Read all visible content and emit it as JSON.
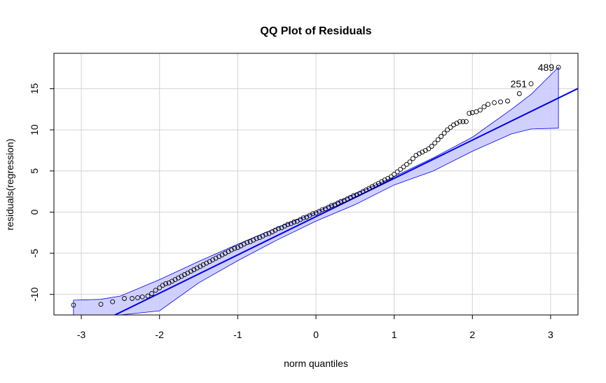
{
  "chart_data": {
    "type": "scatter",
    "title": "QQ Plot of Residuals",
    "xlabel": "norm quantiles",
    "ylabel": "residuals(regression)",
    "xlim": [
      -3.35,
      3.35
    ],
    "ylim": [
      -12.5,
      19.3
    ],
    "xticks": [
      -3,
      -2,
      -1,
      0,
      1,
      2,
      3
    ],
    "yticks": [
      -10,
      -5,
      0,
      5,
      10,
      15
    ],
    "grid": true,
    "colors": {
      "points": "#000000",
      "line": "#0000ee",
      "band_fill": "#c8c8ff",
      "band_stroke": "#0000ee",
      "grid": "#d3d3d3"
    },
    "reference_line": {
      "intercept": -0.55,
      "slope": 4.65
    },
    "envelope": {
      "x": [
        -3.1,
        -2.75,
        -2.5,
        -2.0,
        -1.5,
        -1.0,
        -0.5,
        0.0,
        0.5,
        1.0,
        1.5,
        2.0,
        2.5,
        2.75,
        3.1
      ],
      "upper": [
        -10.7,
        -10.6,
        -10.2,
        -8.2,
        -6.0,
        -3.9,
        -1.9,
        0.0,
        2.2,
        4.3,
        6.6,
        9.1,
        12.5,
        14.3,
        17.6
      ],
      "lower": [
        -12.5,
        -12.5,
        -12.5,
        -12.0,
        -8.6,
        -5.9,
        -3.4,
        -1.1,
        0.9,
        3.3,
        5.0,
        7.4,
        9.5,
        10.1,
        10.2
      ]
    },
    "points": {
      "x": [
        -3.1,
        -2.75,
        -2.6,
        -2.45,
        -2.35,
        -2.28,
        -2.22,
        -2.15,
        -2.1,
        -2.05,
        -2.0,
        -1.96,
        -1.92,
        -1.88,
        -1.84,
        -1.8,
        -1.76,
        -1.72,
        -1.68,
        -1.64,
        -1.6,
        -1.56,
        -1.52,
        -1.48,
        -1.44,
        -1.4,
        -1.36,
        -1.32,
        -1.28,
        -1.24,
        -1.2,
        -1.16,
        -1.12,
        -1.08,
        -1.04,
        -1.0,
        -0.96,
        -0.92,
        -0.88,
        -0.84,
        -0.8,
        -0.76,
        -0.72,
        -0.68,
        -0.64,
        -0.6,
        -0.56,
        -0.52,
        -0.48,
        -0.44,
        -0.4,
        -0.36,
        -0.32,
        -0.28,
        -0.24,
        -0.2,
        -0.16,
        -0.12,
        -0.08,
        -0.04,
        0.0,
        0.04,
        0.08,
        0.12,
        0.16,
        0.2,
        0.24,
        0.28,
        0.32,
        0.36,
        0.4,
        0.44,
        0.48,
        0.52,
        0.56,
        0.6,
        0.64,
        0.68,
        0.72,
        0.76,
        0.8,
        0.84,
        0.88,
        0.92,
        0.96,
        1.0,
        1.04,
        1.08,
        1.12,
        1.16,
        1.2,
        1.24,
        1.28,
        1.32,
        1.36,
        1.4,
        1.44,
        1.48,
        1.52,
        1.56,
        1.6,
        1.64,
        1.68,
        1.72,
        1.76,
        1.8,
        1.84,
        1.88,
        1.92,
        1.96,
        2.0,
        2.05,
        2.1,
        2.15,
        2.2,
        2.28,
        2.36,
        2.45,
        2.6,
        2.75,
        3.1
      ],
      "y": [
        -11.3,
        -11.2,
        -10.9,
        -10.5,
        -10.5,
        -10.4,
        -10.3,
        -10.2,
        -9.9,
        -9.5,
        -9.2,
        -8.9,
        -8.7,
        -8.6,
        -8.4,
        -8.2,
        -8.0,
        -7.8,
        -7.6,
        -7.4,
        -7.2,
        -7.0,
        -6.8,
        -6.6,
        -6.4,
        -6.2,
        -6.0,
        -5.8,
        -5.6,
        -5.4,
        -5.2,
        -5.0,
        -4.8,
        -4.6,
        -4.4,
        -4.3,
        -4.1,
        -3.9,
        -3.7,
        -3.6,
        -3.4,
        -3.2,
        -3.1,
        -2.9,
        -2.7,
        -2.6,
        -2.4,
        -2.2,
        -2.0,
        -1.9,
        -1.7,
        -1.5,
        -1.4,
        -1.2,
        -1.1,
        -0.9,
        -0.7,
        -0.6,
        -0.4,
        -0.2,
        -0.1,
        0.1,
        0.3,
        0.4,
        0.6,
        0.8,
        0.9,
        1.1,
        1.3,
        1.4,
        1.6,
        1.8,
        2.0,
        2.1,
        2.3,
        2.5,
        2.7,
        2.9,
        3.1,
        3.3,
        3.5,
        3.7,
        3.9,
        4.1,
        4.3,
        4.6,
        4.9,
        5.2,
        5.5,
        5.8,
        6.1,
        6.5,
        6.9,
        7.1,
        7.3,
        7.5,
        7.7,
        8.0,
        8.4,
        8.8,
        9.2,
        9.6,
        10.0,
        10.3,
        10.6,
        10.8,
        11.0,
        11.0,
        11.0,
        12.0,
        12.1,
        12.2,
        12.4,
        12.8,
        13.1,
        13.3,
        13.4,
        13.5,
        14.4,
        15.6,
        17.6
      ]
    },
    "labeled_points": [
      {
        "label": "489",
        "x": 3.1,
        "y": 17.6
      },
      {
        "label": "251",
        "x": 2.75,
        "y": 15.6
      }
    ]
  }
}
